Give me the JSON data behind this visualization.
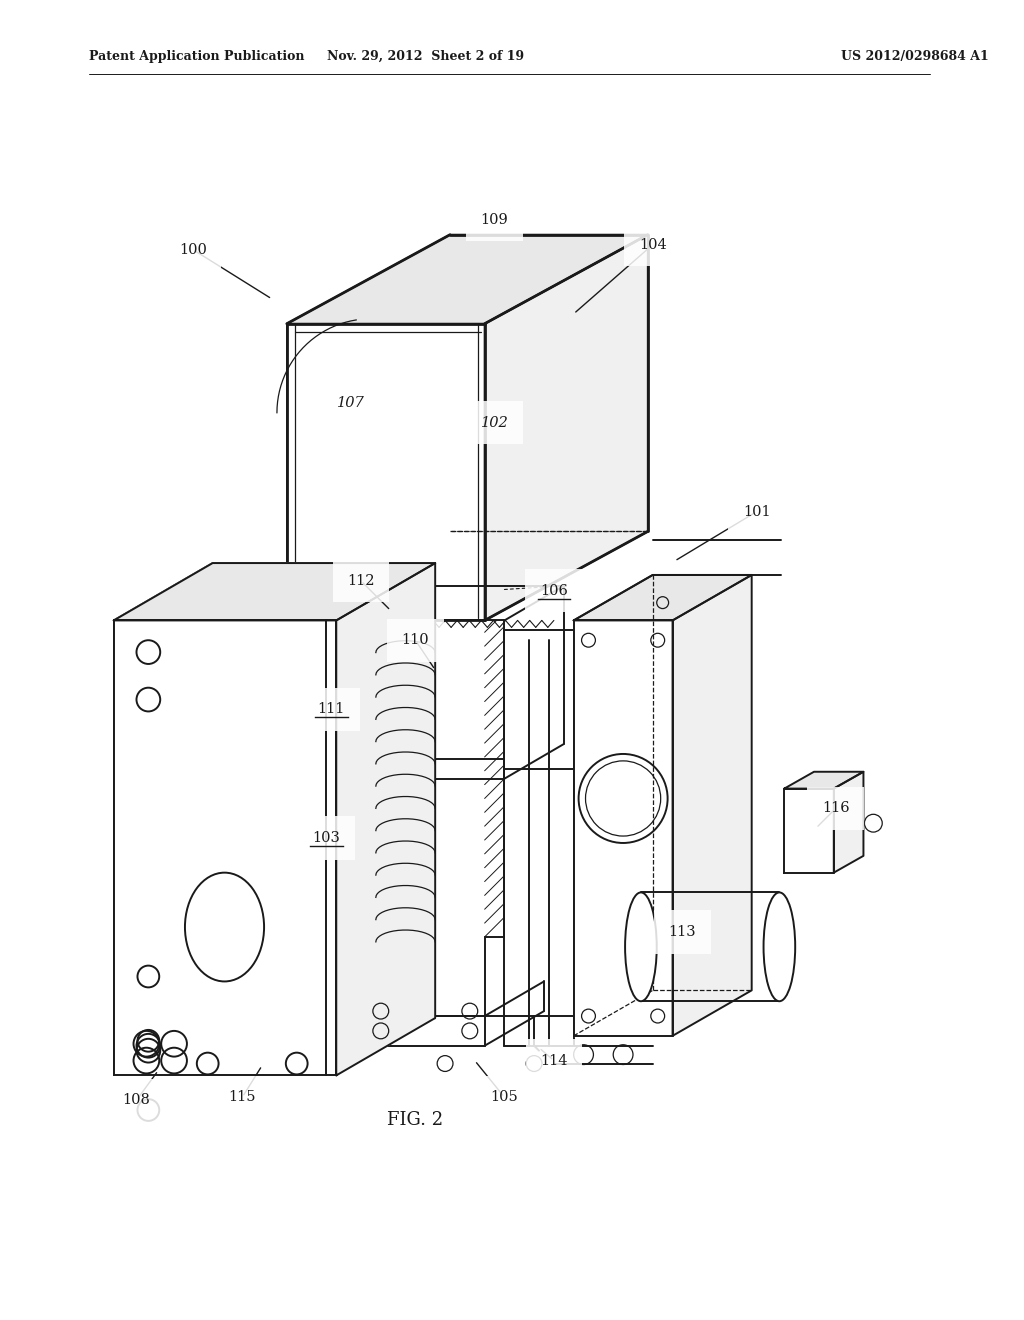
{
  "bg_color": "#ffffff",
  "line_color": "#1a1a1a",
  "header_left": "Patent Application Publication",
  "header_mid": "Nov. 29, 2012  Sheet 2 of 19",
  "header_right": "US 2012/0298684 A1",
  "fig_label": "FIG. 2",
  "lw_main": 1.4,
  "lw_thin": 0.9,
  "lw_thick": 2.0,
  "fs_label": 10,
  "fs_header": 9,
  "fs_fig": 13
}
